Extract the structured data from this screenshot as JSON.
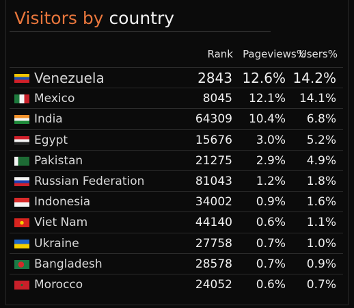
{
  "header": {
    "title": [
      "Visitors by",
      "country"
    ]
  },
  "table": {
    "columns": [
      "Rank",
      "Pageviews%",
      "Users%"
    ],
    "rows": [
      [
        "Venezuela",
        2843,
        "12.6%",
        "14.2%"
      ],
      [
        "Mexico",
        8045,
        "12.1%",
        "14.1%"
      ],
      [
        "India",
        64309,
        "10.4%",
        "6.8%"
      ],
      [
        "Egypt",
        15676,
        "3.0%",
        "5.2%"
      ],
      [
        "Pakistan",
        21275,
        "2.9%",
        "4.9%"
      ],
      [
        "Russian Federation",
        81043,
        "1.2%",
        "1.8%"
      ],
      [
        "Indonesia",
        34002,
        "0.9%",
        "1.6%"
      ],
      [
        "Viet Nam",
        44140,
        "0.6%",
        "1.1%"
      ],
      [
        "Ukraine",
        27758,
        "0.7%",
        "1.0%"
      ],
      [
        "Bangladesh",
        28578,
        "0.7%",
        "0.9%"
      ],
      [
        "Morocco",
        24052,
        "0.6%",
        "0.7%"
      ]
    ]
  }
}
